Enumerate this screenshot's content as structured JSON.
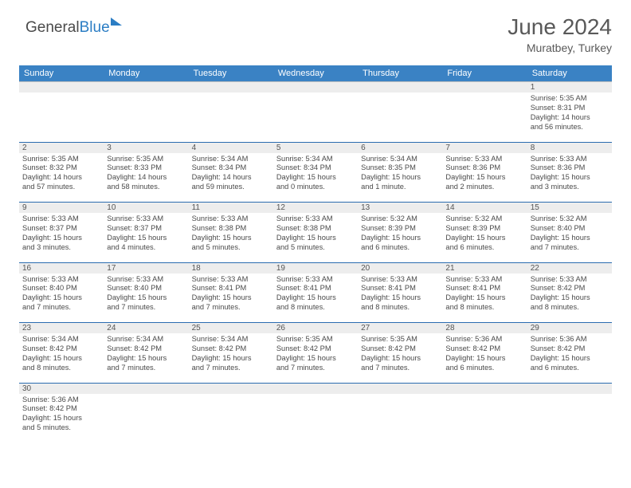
{
  "logo": {
    "word_general": "General",
    "word_blue": "Blue"
  },
  "title": "June 2024",
  "subtitle": "Muratbey, Turkey",
  "colors": {
    "header_bg": "#3a82c4",
    "header_text": "#ffffff",
    "daynum_bg": "#ededed",
    "border": "#2b6cb0",
    "logo_blue": "#2b7dc4",
    "body_text": "#4a4a4a"
  },
  "day_headers": [
    "Sunday",
    "Monday",
    "Tuesday",
    "Wednesday",
    "Thursday",
    "Friday",
    "Saturday"
  ],
  "weeks": [
    {
      "nums": [
        "",
        "",
        "",
        "",
        "",
        "",
        "1"
      ],
      "cells": [
        null,
        null,
        null,
        null,
        null,
        null,
        {
          "sunrise": "Sunrise: 5:35 AM",
          "sunset": "Sunset: 8:31 PM",
          "day1": "Daylight: 14 hours",
          "day2": "and 56 minutes."
        }
      ]
    },
    {
      "nums": [
        "2",
        "3",
        "4",
        "5",
        "6",
        "7",
        "8"
      ],
      "cells": [
        {
          "sunrise": "Sunrise: 5:35 AM",
          "sunset": "Sunset: 8:32 PM",
          "day1": "Daylight: 14 hours",
          "day2": "and 57 minutes."
        },
        {
          "sunrise": "Sunrise: 5:35 AM",
          "sunset": "Sunset: 8:33 PM",
          "day1": "Daylight: 14 hours",
          "day2": "and 58 minutes."
        },
        {
          "sunrise": "Sunrise: 5:34 AM",
          "sunset": "Sunset: 8:34 PM",
          "day1": "Daylight: 14 hours",
          "day2": "and 59 minutes."
        },
        {
          "sunrise": "Sunrise: 5:34 AM",
          "sunset": "Sunset: 8:34 PM",
          "day1": "Daylight: 15 hours",
          "day2": "and 0 minutes."
        },
        {
          "sunrise": "Sunrise: 5:34 AM",
          "sunset": "Sunset: 8:35 PM",
          "day1": "Daylight: 15 hours",
          "day2": "and 1 minute."
        },
        {
          "sunrise": "Sunrise: 5:33 AM",
          "sunset": "Sunset: 8:36 PM",
          "day1": "Daylight: 15 hours",
          "day2": "and 2 minutes."
        },
        {
          "sunrise": "Sunrise: 5:33 AM",
          "sunset": "Sunset: 8:36 PM",
          "day1": "Daylight: 15 hours",
          "day2": "and 3 minutes."
        }
      ]
    },
    {
      "nums": [
        "9",
        "10",
        "11",
        "12",
        "13",
        "14",
        "15"
      ],
      "cells": [
        {
          "sunrise": "Sunrise: 5:33 AM",
          "sunset": "Sunset: 8:37 PM",
          "day1": "Daylight: 15 hours",
          "day2": "and 3 minutes."
        },
        {
          "sunrise": "Sunrise: 5:33 AM",
          "sunset": "Sunset: 8:37 PM",
          "day1": "Daylight: 15 hours",
          "day2": "and 4 minutes."
        },
        {
          "sunrise": "Sunrise: 5:33 AM",
          "sunset": "Sunset: 8:38 PM",
          "day1": "Daylight: 15 hours",
          "day2": "and 5 minutes."
        },
        {
          "sunrise": "Sunrise: 5:33 AM",
          "sunset": "Sunset: 8:38 PM",
          "day1": "Daylight: 15 hours",
          "day2": "and 5 minutes."
        },
        {
          "sunrise": "Sunrise: 5:32 AM",
          "sunset": "Sunset: 8:39 PM",
          "day1": "Daylight: 15 hours",
          "day2": "and 6 minutes."
        },
        {
          "sunrise": "Sunrise: 5:32 AM",
          "sunset": "Sunset: 8:39 PM",
          "day1": "Daylight: 15 hours",
          "day2": "and 6 minutes."
        },
        {
          "sunrise": "Sunrise: 5:32 AM",
          "sunset": "Sunset: 8:40 PM",
          "day1": "Daylight: 15 hours",
          "day2": "and 7 minutes."
        }
      ]
    },
    {
      "nums": [
        "16",
        "17",
        "18",
        "19",
        "20",
        "21",
        "22"
      ],
      "cells": [
        {
          "sunrise": "Sunrise: 5:33 AM",
          "sunset": "Sunset: 8:40 PM",
          "day1": "Daylight: 15 hours",
          "day2": "and 7 minutes."
        },
        {
          "sunrise": "Sunrise: 5:33 AM",
          "sunset": "Sunset: 8:40 PM",
          "day1": "Daylight: 15 hours",
          "day2": "and 7 minutes."
        },
        {
          "sunrise": "Sunrise: 5:33 AM",
          "sunset": "Sunset: 8:41 PM",
          "day1": "Daylight: 15 hours",
          "day2": "and 7 minutes."
        },
        {
          "sunrise": "Sunrise: 5:33 AM",
          "sunset": "Sunset: 8:41 PM",
          "day1": "Daylight: 15 hours",
          "day2": "and 8 minutes."
        },
        {
          "sunrise": "Sunrise: 5:33 AM",
          "sunset": "Sunset: 8:41 PM",
          "day1": "Daylight: 15 hours",
          "day2": "and 8 minutes."
        },
        {
          "sunrise": "Sunrise: 5:33 AM",
          "sunset": "Sunset: 8:41 PM",
          "day1": "Daylight: 15 hours",
          "day2": "and 8 minutes."
        },
        {
          "sunrise": "Sunrise: 5:33 AM",
          "sunset": "Sunset: 8:42 PM",
          "day1": "Daylight: 15 hours",
          "day2": "and 8 minutes."
        }
      ]
    },
    {
      "nums": [
        "23",
        "24",
        "25",
        "26",
        "27",
        "28",
        "29"
      ],
      "cells": [
        {
          "sunrise": "Sunrise: 5:34 AM",
          "sunset": "Sunset: 8:42 PM",
          "day1": "Daylight: 15 hours",
          "day2": "and 8 minutes."
        },
        {
          "sunrise": "Sunrise: 5:34 AM",
          "sunset": "Sunset: 8:42 PM",
          "day1": "Daylight: 15 hours",
          "day2": "and 7 minutes."
        },
        {
          "sunrise": "Sunrise: 5:34 AM",
          "sunset": "Sunset: 8:42 PM",
          "day1": "Daylight: 15 hours",
          "day2": "and 7 minutes."
        },
        {
          "sunrise": "Sunrise: 5:35 AM",
          "sunset": "Sunset: 8:42 PM",
          "day1": "Daylight: 15 hours",
          "day2": "and 7 minutes."
        },
        {
          "sunrise": "Sunrise: 5:35 AM",
          "sunset": "Sunset: 8:42 PM",
          "day1": "Daylight: 15 hours",
          "day2": "and 7 minutes."
        },
        {
          "sunrise": "Sunrise: 5:36 AM",
          "sunset": "Sunset: 8:42 PM",
          "day1": "Daylight: 15 hours",
          "day2": "and 6 minutes."
        },
        {
          "sunrise": "Sunrise: 5:36 AM",
          "sunset": "Sunset: 8:42 PM",
          "day1": "Daylight: 15 hours",
          "day2": "and 6 minutes."
        }
      ]
    },
    {
      "nums": [
        "30",
        "",
        "",
        "",
        "",
        "",
        ""
      ],
      "cells": [
        {
          "sunrise": "Sunrise: 5:36 AM",
          "sunset": "Sunset: 8:42 PM",
          "day1": "Daylight: 15 hours",
          "day2": "and 5 minutes."
        },
        null,
        null,
        null,
        null,
        null,
        null
      ]
    }
  ]
}
